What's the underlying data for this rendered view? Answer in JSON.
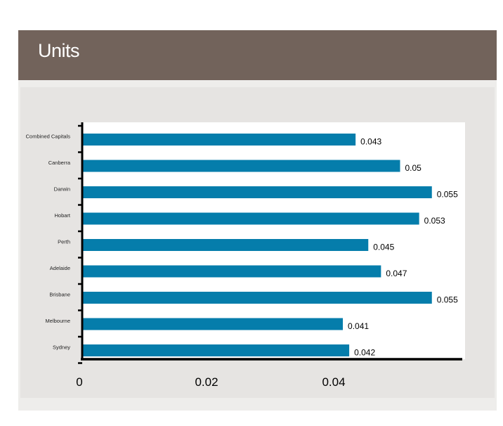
{
  "header": {
    "title": "Units"
  },
  "chart_data": {
    "type": "bar",
    "orientation": "horizontal",
    "categories": [
      "Combined Capitals",
      "Canberra",
      "Darwin",
      "Hobart",
      "Perth",
      "Adelaide",
      "Brisbane",
      "Melbourne",
      "Sydney"
    ],
    "values": [
      0.043,
      0.05,
      0.055,
      0.053,
      0.045,
      0.047,
      0.055,
      0.041,
      0.042
    ],
    "data_labels": [
      "0.043",
      "0.05",
      "0.055",
      "0.053",
      "0.045",
      "0.047",
      "0.055",
      "0.041",
      "0.042"
    ],
    "x_ticks": [
      0,
      0.02,
      0.04
    ],
    "x_tick_labels": [
      "0",
      "0.02",
      "0.04"
    ],
    "xlim": [
      0,
      0.06
    ],
    "grid": false,
    "legend": "none",
    "colors": {
      "bar": "#057dab",
      "plot_bg": "#ffffff",
      "axis": "#000000"
    }
  }
}
